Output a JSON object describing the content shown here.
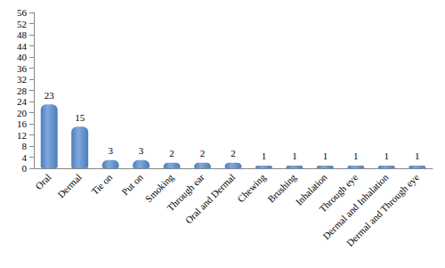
{
  "chart_data": {
    "type": "bar",
    "categories": [
      "Oral",
      "Dermal",
      "Tie on",
      "Put on",
      "Smoking",
      "Through ear",
      "Oral and Dermal",
      "Chewing",
      "Brushing",
      "Inhalation",
      "Through eye",
      "Dermal and Inhalation",
      "Dermal and Through eye"
    ],
    "values": [
      23,
      15,
      3,
      3,
      2,
      2,
      2,
      1,
      1,
      1,
      1,
      1,
      1
    ],
    "color": "#4a7ebb",
    "ylim": [
      0,
      56
    ],
    "yticks": [
      0,
      4,
      8,
      12,
      16,
      20,
      24,
      28,
      32,
      36,
      40,
      44,
      48,
      52,
      56
    ],
    "grid": false,
    "data_labels": true
  }
}
